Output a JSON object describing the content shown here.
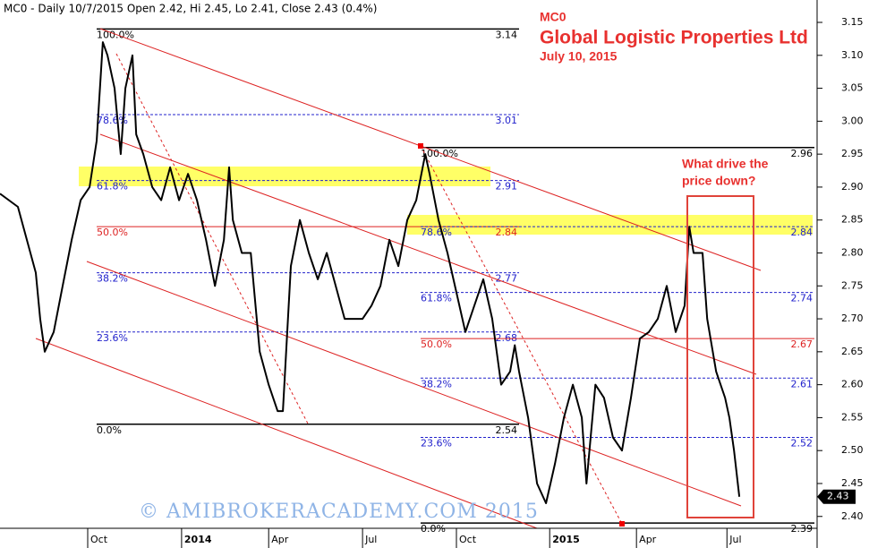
{
  "chart_data": {
    "type": "line",
    "header": "MC0 - Daily 10/7/2015 Open 2.42, Hi 2.45, Lo 2.41, Close 2.43 (0.4%)",
    "symbol": "MC0",
    "title": "Global Logistic Properties Ltd",
    "subtitle": "July 10, 2015",
    "annotation_lines": [
      "What drive the",
      "price down?"
    ],
    "watermark": "© AMIBROKERACADEMY.COM 2015",
    "color": "#000000",
    "last_price": 2.43,
    "xlim": [
      0.16,
      26.59
    ],
    "ylim": [
      2.382,
      3.184
    ],
    "xticks": [
      {
        "value": 3,
        "label": "Oct"
      },
      {
        "value": 6.04,
        "label": "2014"
      },
      {
        "value": 8.86,
        "label": "Apr"
      },
      {
        "value": 11.9,
        "label": "Jul"
      },
      {
        "value": 14.94,
        "label": "Oct"
      },
      {
        "value": 17.96,
        "label": "2015"
      },
      {
        "value": 20.77,
        "label": "Apr"
      },
      {
        "value": 23.7,
        "label": "Jul"
      }
    ],
    "yticks": [
      {
        "value": 2.4,
        "label": "2.40"
      },
      2.45,
      {
        "value": 2.5,
        "label": "2.50"
      },
      2.55,
      {
        "value": 2.6,
        "label": "2.60"
      },
      2.65,
      {
        "value": 2.7,
        "label": "2.70"
      },
      2.75,
      {
        "value": 2.8,
        "label": "2.80"
      },
      2.85,
      {
        "value": 2.9,
        "label": "2.90"
      },
      2.95,
      {
        "value": 3.0,
        "label": "3.00"
      },
      3.05,
      {
        "value": 3.1,
        "label": "3.10"
      },
      3.15
    ],
    "x": [
      0.16,
      0.74,
      1.32,
      1.46,
      1.61,
      1.9,
      2.19,
      2.48,
      2.77,
      3.06,
      3.29,
      3.49,
      3.64,
      3.87,
      4.07,
      4.22,
      4.45,
      4.57,
      4.8,
      5.09,
      5.38,
      5.67,
      5.96,
      6.25,
      6.54,
      6.83,
      7.12,
      7.41,
      7.58,
      7.7,
      7.99,
      8.28,
      8.57,
      8.86,
      9.15,
      9.32,
      9.58,
      9.87,
      10.16,
      10.45,
      10.74,
      11.03,
      11.32,
      11.61,
      11.9,
      12.19,
      12.48,
      12.77,
      13.06,
      13.35,
      13.64,
      13.93,
      14.07,
      14.36,
      14.65,
      14.94,
      15.23,
      15.52,
      15.81,
      16.1,
      16.39,
      16.68,
      16.83,
      16.97,
      17.26,
      17.55,
      17.84,
      18.13,
      18.42,
      18.71,
      19.0,
      19.15,
      19.44,
      19.72,
      20.01,
      20.3,
      20.59,
      20.88,
      21.17,
      21.46,
      21.75,
      22.04,
      22.33,
      22.48,
      22.62,
      22.91,
      23.06,
      23.35,
      23.64,
      23.78,
      23.93,
      24.1
    ],
    "values": [
      2.89,
      2.87,
      2.77,
      2.7,
      2.65,
      2.68,
      2.75,
      2.82,
      2.88,
      2.9,
      2.97,
      3.12,
      3.1,
      3.05,
      2.95,
      3.05,
      3.1,
      2.98,
      2.95,
      2.9,
      2.88,
      2.93,
      2.88,
      2.92,
      2.88,
      2.82,
      2.75,
      2.82,
      2.93,
      2.85,
      2.8,
      2.8,
      2.65,
      2.6,
      2.56,
      2.56,
      2.78,
      2.85,
      2.8,
      2.76,
      2.8,
      2.75,
      2.7,
      2.7,
      2.7,
      2.72,
      2.75,
      2.82,
      2.78,
      2.85,
      2.88,
      2.95,
      2.92,
      2.85,
      2.8,
      2.74,
      2.68,
      2.72,
      2.76,
      2.7,
      2.6,
      2.62,
      2.66,
      2.62,
      2.55,
      2.45,
      2.42,
      2.48,
      2.55,
      2.6,
      2.55,
      2.45,
      2.6,
      2.58,
      2.52,
      2.5,
      2.58,
      2.67,
      2.68,
      2.7,
      2.75,
      2.68,
      2.72,
      2.84,
      2.8,
      2.8,
      2.7,
      2.62,
      2.58,
      2.55,
      2.5,
      2.43
    ],
    "fib_sets": [
      {
        "levels": [
          {
            "label": "100.0%",
            "price": 3.14
          },
          {
            "label": "78.6%",
            "price": 3.01
          },
          {
            "label": "61.8%",
            "price": 2.91
          },
          {
            "label": "50.0%",
            "price": 2.84
          },
          {
            "label": "38.2%",
            "price": 2.77
          },
          {
            "label": "23.6%",
            "price": 2.68
          },
          {
            "label": "0.0%",
            "price": 2.54
          }
        ]
      },
      {
        "levels": [
          {
            "label": "100.0%",
            "price": 2.96
          },
          {
            "label": "78.6%",
            "price": 2.84
          },
          {
            "label": "61.8%",
            "price": 2.74
          },
          {
            "label": "50.0%",
            "price": 2.67
          },
          {
            "label": "38.2%",
            "price": 2.61
          },
          {
            "label": "23.6%",
            "price": 2.52
          },
          {
            "label": "0.0%",
            "price": 2.39
          }
        ]
      }
    ]
  }
}
